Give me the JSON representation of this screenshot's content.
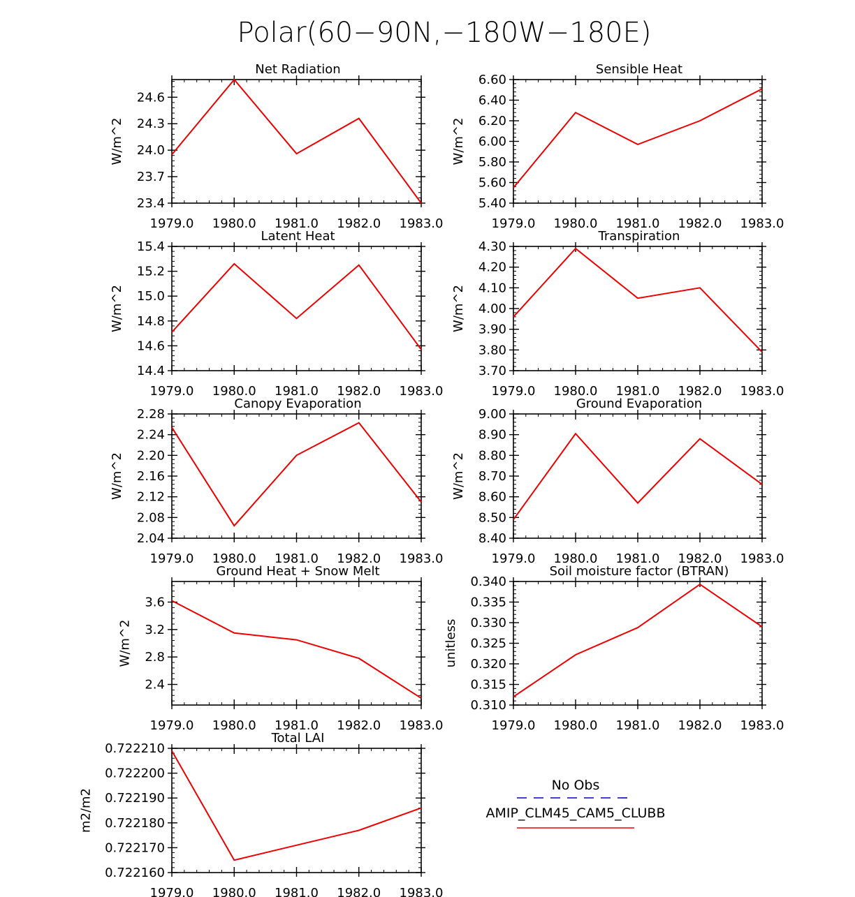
{
  "page_title": "Polar(60−90N,−180W−180E)",
  "legend": {
    "entries": [
      {
        "label": "No Obs",
        "color": "#0000cc",
        "dash": "dashed"
      },
      {
        "label": "AMIP_CLM45_CAM5_CLUBB",
        "color": "#ee0000",
        "dash": "solid"
      }
    ]
  },
  "chart_data": [
    {
      "type": "line",
      "title": "Net Radiation",
      "ylabel": "W/m^2",
      "x": [
        1979,
        1980,
        1981,
        1982,
        1983
      ],
      "x_ticks": [
        "1979.0",
        "1980.0",
        "1981.0",
        "1982.0",
        "1983.0"
      ],
      "ylim": [
        23.4,
        24.8
      ],
      "y_ticks": [
        "23.4",
        "23.7",
        "24.0",
        "24.3",
        "24.6"
      ],
      "y_tick_values": [
        23.4,
        23.7,
        24.0,
        24.3,
        24.6
      ],
      "series": [
        {
          "values": [
            23.95,
            24.8,
            23.96,
            24.36,
            23.4
          ],
          "color": "#ee0000"
        }
      ]
    },
    {
      "type": "line",
      "title": "Sensible Heat",
      "ylabel": "W/m^2",
      "x": [
        1979,
        1980,
        1981,
        1982,
        1983
      ],
      "x_ticks": [
        "1979.0",
        "1980.0",
        "1981.0",
        "1982.0",
        "1983.0"
      ],
      "ylim": [
        5.4,
        6.6
      ],
      "y_ticks": [
        "5.40",
        "5.60",
        "5.80",
        "6.00",
        "6.20",
        "6.40",
        "6.60"
      ],
      "y_tick_values": [
        5.4,
        5.6,
        5.8,
        6.0,
        6.2,
        6.4,
        6.6
      ],
      "series": [
        {
          "values": [
            5.55,
            6.28,
            5.97,
            6.2,
            6.51
          ],
          "color": "#ee0000"
        }
      ]
    },
    {
      "type": "line",
      "title": "Latent Heat",
      "ylabel": "W/m^2",
      "x": [
        1979,
        1980,
        1981,
        1982,
        1983
      ],
      "x_ticks": [
        "1979.0",
        "1980.0",
        "1981.0",
        "1982.0",
        "1983.0"
      ],
      "ylim": [
        14.4,
        15.4
      ],
      "y_ticks": [
        "14.4",
        "14.6",
        "14.8",
        "15.0",
        "15.2",
        "15.4"
      ],
      "y_tick_values": [
        14.4,
        14.6,
        14.8,
        15.0,
        15.2,
        15.4
      ],
      "series": [
        {
          "values": [
            14.71,
            15.26,
            14.82,
            15.25,
            14.57
          ],
          "color": "#ee0000"
        }
      ]
    },
    {
      "type": "line",
      "title": "Transpiration",
      "ylabel": "W/m^2",
      "x": [
        1979,
        1980,
        1981,
        1982,
        1983
      ],
      "x_ticks": [
        "1979.0",
        "1980.0",
        "1981.0",
        "1982.0",
        "1983.0"
      ],
      "ylim": [
        3.7,
        4.3
      ],
      "y_ticks": [
        "3.70",
        "3.80",
        "3.90",
        "4.00",
        "4.10",
        "4.20",
        "4.30"
      ],
      "y_tick_values": [
        3.7,
        3.8,
        3.9,
        4.0,
        4.1,
        4.2,
        4.3
      ],
      "series": [
        {
          "values": [
            3.96,
            4.29,
            4.05,
            4.1,
            3.79
          ],
          "color": "#ee0000"
        }
      ]
    },
    {
      "type": "line",
      "title": "Canopy Evaporation",
      "ylabel": "W/m^2",
      "x": [
        1979,
        1980,
        1981,
        1982,
        1983
      ],
      "x_ticks": [
        "1979.0",
        "1980.0",
        "1981.0",
        "1982.0",
        "1983.0"
      ],
      "ylim": [
        2.04,
        2.28
      ],
      "y_ticks": [
        "2.04",
        "2.08",
        "2.12",
        "2.16",
        "2.20",
        "2.24",
        "2.28"
      ],
      "y_tick_values": [
        2.04,
        2.08,
        2.12,
        2.16,
        2.2,
        2.24,
        2.28
      ],
      "series": [
        {
          "values": [
            2.254,
            2.064,
            2.2,
            2.263,
            2.11
          ],
          "color": "#ee0000"
        }
      ]
    },
    {
      "type": "line",
      "title": "Ground Evaporation",
      "ylabel": "W/m^2",
      "x": [
        1979,
        1980,
        1981,
        1982,
        1983
      ],
      "x_ticks": [
        "1979.0",
        "1980.0",
        "1981.0",
        "1982.0",
        "1983.0"
      ],
      "ylim": [
        8.4,
        9.0
      ],
      "y_ticks": [
        "8.40",
        "8.50",
        "8.60",
        "8.70",
        "8.80",
        "8.90",
        "9.00"
      ],
      "y_tick_values": [
        8.4,
        8.5,
        8.6,
        8.7,
        8.8,
        8.9,
        9.0
      ],
      "series": [
        {
          "values": [
            8.49,
            8.905,
            8.57,
            8.88,
            8.66
          ],
          "color": "#ee0000"
        }
      ]
    },
    {
      "type": "line",
      "title": "Ground Heat + Snow Melt",
      "ylabel": "W/m^2",
      "x": [
        1979,
        1980,
        1981,
        1982,
        1983
      ],
      "x_ticks": [
        "1979.0",
        "1980.0",
        "1981.0",
        "1982.0",
        "1983.0"
      ],
      "ylim": [
        2.1,
        3.9
      ],
      "y_ticks": [
        "2.4",
        "2.8",
        "3.2",
        "3.6"
      ],
      "y_tick_values": [
        2.4,
        2.8,
        3.2,
        3.6
      ],
      "series": [
        {
          "values": [
            3.62,
            3.15,
            3.05,
            2.78,
            2.2
          ],
          "color": "#ee0000"
        }
      ]
    },
    {
      "type": "line",
      "title": "Soil moisture factor (BTRAN)",
      "ylabel": "unitless",
      "x": [
        1979,
        1980,
        1981,
        1982,
        1983
      ],
      "x_ticks": [
        "1979.0",
        "1980.0",
        "1981.0",
        "1982.0",
        "1983.0"
      ],
      "ylim": [
        0.31,
        0.34
      ],
      "y_ticks": [
        "0.310",
        "0.315",
        "0.320",
        "0.325",
        "0.330",
        "0.335",
        "0.340"
      ],
      "y_tick_values": [
        0.31,
        0.315,
        0.32,
        0.325,
        0.33,
        0.335,
        0.34
      ],
      "series": [
        {
          "values": [
            0.312,
            0.3222,
            0.3288,
            0.3393,
            0.329
          ],
          "color": "#ee0000"
        }
      ]
    },
    {
      "type": "line",
      "title": "Total LAI",
      "ylabel": "m2/m2",
      "x": [
        1979,
        1980,
        1981,
        1982,
        1983
      ],
      "x_ticks": [
        "1979.0",
        "1980.0",
        "1981.0",
        "1982.0",
        "1983.0"
      ],
      "ylim": [
        0.72216,
        0.72221
      ],
      "y_ticks": [
        "0.722160",
        "0.722170",
        "0.722180",
        "0.722190",
        "0.722200",
        "0.722210"
      ],
      "y_tick_values": [
        0.72216,
        0.72217,
        0.72218,
        0.72219,
        0.7222,
        0.72221
      ],
      "series": [
        {
          "values": [
            0.722209,
            0.722165,
            0.722171,
            0.722177,
            0.722186
          ],
          "color": "#ee0000"
        }
      ]
    }
  ]
}
